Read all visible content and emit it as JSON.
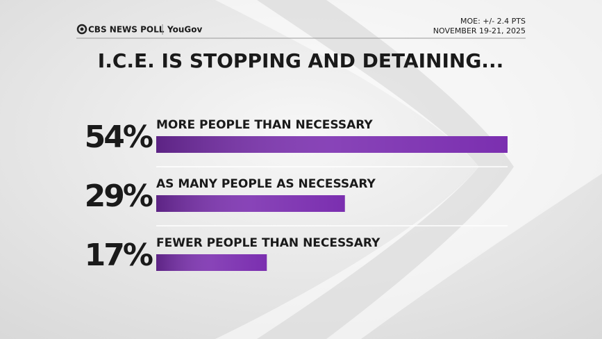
{
  "header": {
    "brand": "CBS NEWS POLL",
    "partner": "YouGov",
    "moe": "MOE: +/- 2.4 PTS",
    "dates": "NOVEMBER 19-21, 2025"
  },
  "chart_data": {
    "type": "bar",
    "orientation": "horizontal",
    "title": "I.C.E. IS STOPPING AND DETAINING...",
    "categories": [
      "MORE PEOPLE THAN NECESSARY",
      "AS MANY PEOPLE AS NECESSARY",
      "FEWER PEOPLE THAN NECESSARY"
    ],
    "values": [
      54,
      29,
      17
    ],
    "value_labels": [
      "54%",
      "29%",
      "17%"
    ],
    "color": "#7b2fb0"
  }
}
